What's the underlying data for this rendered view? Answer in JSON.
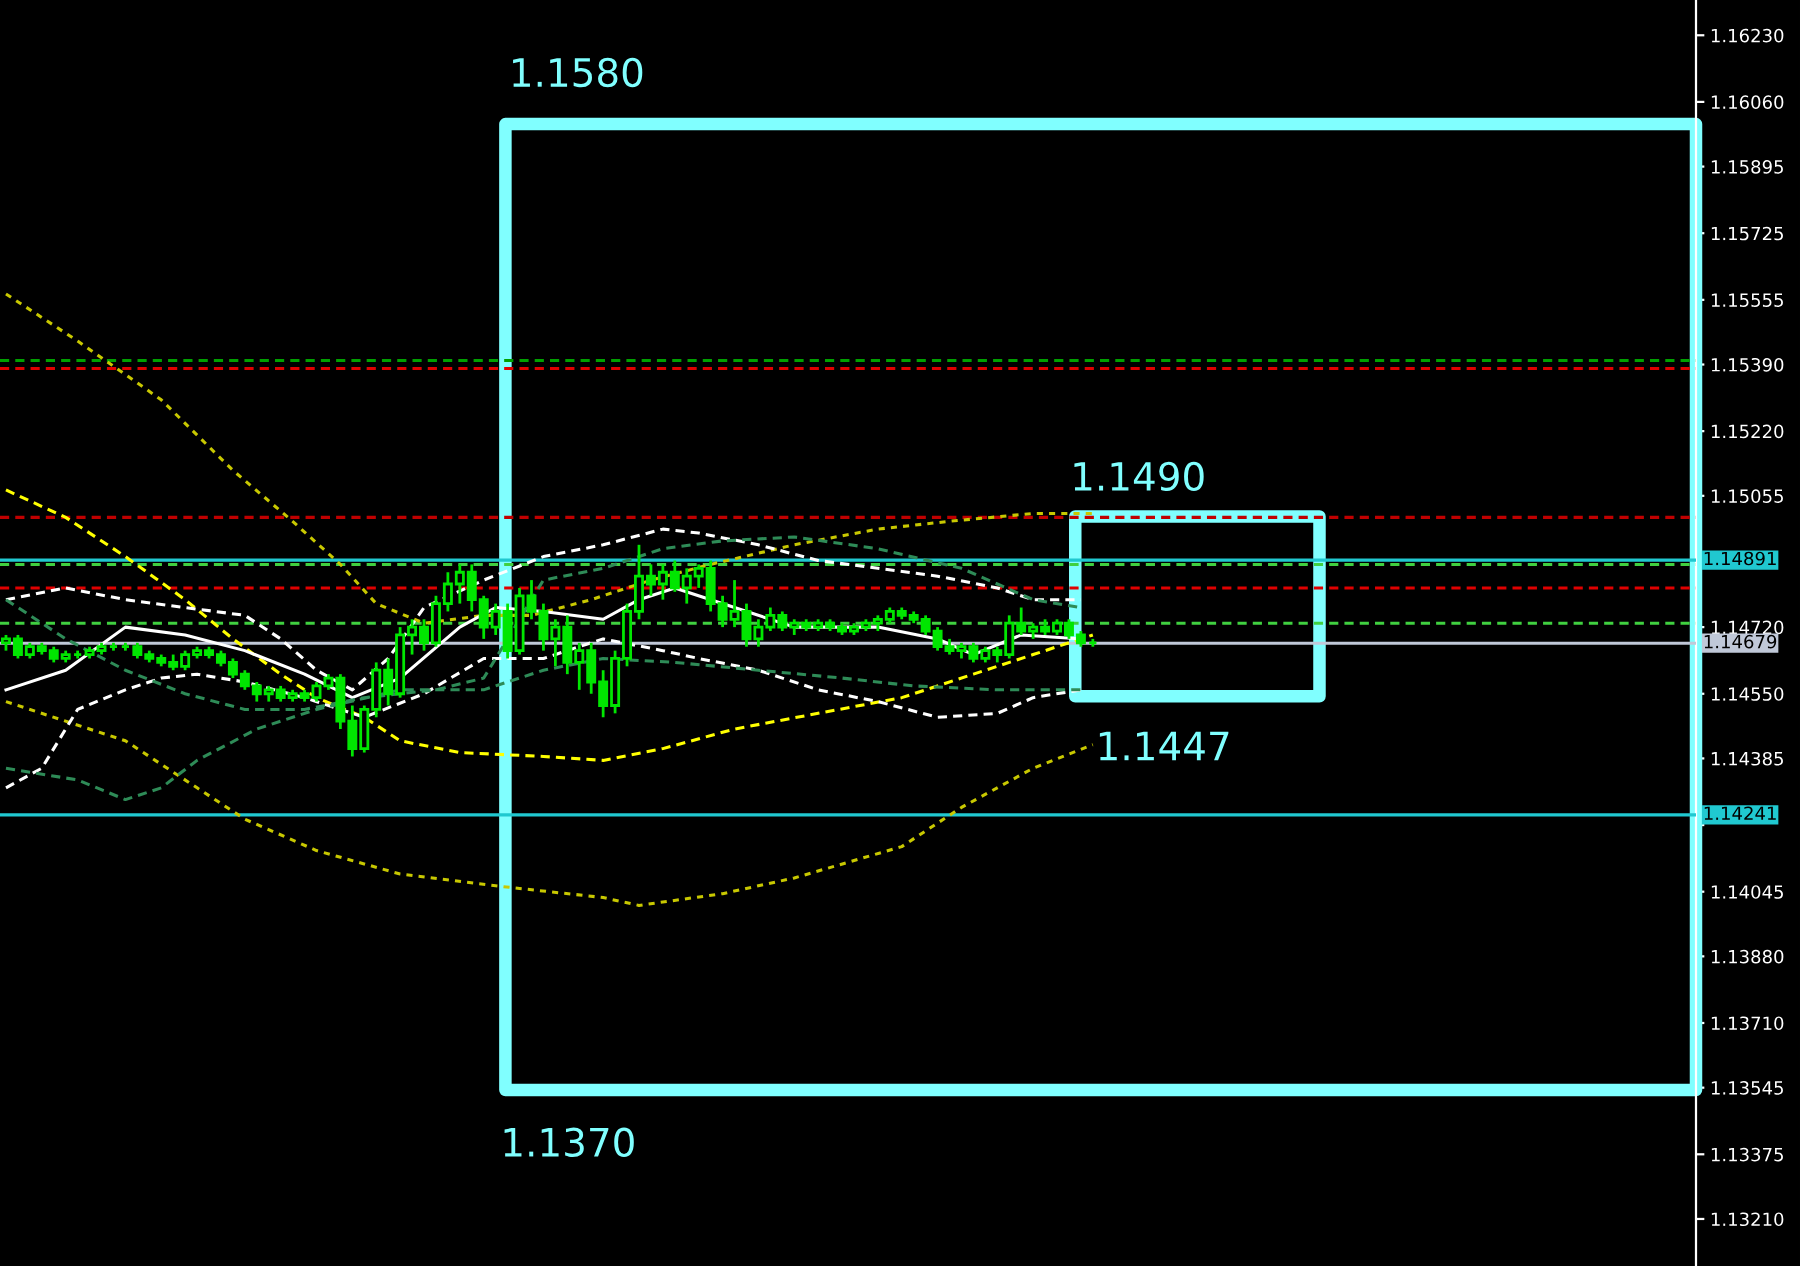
{
  "chart_data": {
    "type": "candlestick",
    "color": "#00e600",
    "categories": [
      null,
      null,
      null,
      null,
      null,
      null,
      null,
      null,
      null,
      null,
      null,
      null,
      null,
      null,
      null,
      null,
      null,
      null,
      null,
      null,
      null,
      null,
      null,
      null,
      null,
      null,
      null,
      null,
      null,
      null,
      null,
      null,
      null,
      null,
      null,
      null,
      null,
      null,
      null,
      null,
      null,
      null,
      null,
      null,
      null,
      null,
      null,
      null,
      null,
      null,
      null,
      null,
      null,
      null,
      null,
      null,
      null,
      null,
      null,
      null,
      null,
      null,
      null,
      null,
      null,
      null,
      null,
      null,
      null,
      null,
      null,
      null,
      null,
      null,
      null,
      null,
      null,
      null,
      null,
      null,
      null,
      null,
      null,
      null,
      null,
      null,
      null,
      null,
      null,
      null,
      null,
      null,
      null,
      null,
      null,
      null,
      null,
      null,
      null,
      null,
      null,
      null,
      null,
      null,
      null,
      null,
      null,
      null,
      null,
      null,
      null,
      null,
      null,
      null,
      null,
      null,
      null,
      null,
      null,
      null,
      null,
      null,
      null,
      null,
      null,
      null,
      null,
      null,
      null,
      null,
      null,
      null,
      null,
      null,
      null,
      null,
      null,
      null,
      null,
      null,
      null,
      null
    ],
    "ohlc": [
      [
        1.1468,
        1.147,
        1.1466,
        1.1469
      ],
      [
        1.1469,
        1.147,
        1.1464,
        1.1465
      ],
      [
        1.1465,
        1.1468,
        1.1464,
        1.1467
      ],
      [
        1.1467,
        1.1468,
        1.1465,
        1.1466
      ],
      [
        1.1466,
        1.1467,
        1.1463,
        1.1464
      ],
      [
        1.1464,
        1.1466,
        1.1463,
        1.1465
      ],
      [
        1.1465,
        1.1466,
        1.1464,
        1.1465
      ],
      [
        1.1465,
        1.1467,
        1.1464,
        1.1466
      ],
      [
        1.1466,
        1.1468,
        1.1465,
        1.1467
      ],
      [
        1.1467,
        1.1468,
        1.1466,
        1.1467
      ],
      [
        1.1467,
        1.1468,
        1.1466,
        1.1467
      ],
      [
        1.1467,
        1.1468,
        1.1464,
        1.1465
      ],
      [
        1.1465,
        1.1466,
        1.1463,
        1.1464
      ],
      [
        1.1464,
        1.1465,
        1.1462,
        1.1463
      ],
      [
        1.1463,
        1.1465,
        1.1461,
        1.1462
      ],
      [
        1.1462,
        1.1466,
        1.1461,
        1.1465
      ],
      [
        1.1465,
        1.1467,
        1.1464,
        1.1466
      ],
      [
        1.1466,
        1.1467,
        1.1464,
        1.1465
      ],
      [
        1.1465,
        1.1466,
        1.1462,
        1.1463
      ],
      [
        1.1463,
        1.1464,
        1.1459,
        1.146
      ],
      [
        1.146,
        1.1461,
        1.1456,
        1.1457
      ],
      [
        1.1457,
        1.1458,
        1.1453,
        1.1455
      ],
      [
        1.1455,
        1.1457,
        1.1453,
        1.1456
      ],
      [
        1.1456,
        1.1457,
        1.1453,
        1.1454
      ],
      [
        1.1454,
        1.1456,
        1.1453,
        1.1455
      ],
      [
        1.1455,
        1.1456,
        1.1453,
        1.1454
      ],
      [
        1.1454,
        1.1458,
        1.1453,
        1.1457
      ],
      [
        1.1457,
        1.146,
        1.1456,
        1.1459
      ],
      [
        1.1459,
        1.146,
        1.1446,
        1.1448
      ],
      [
        1.1448,
        1.1452,
        1.1439,
        1.1441
      ],
      [
        1.1441,
        1.1452,
        1.144,
        1.1451
      ],
      [
        1.1451,
        1.1463,
        1.1449,
        1.1461
      ],
      [
        1.1461,
        1.1464,
        1.1452,
        1.1455
      ],
      [
        1.1455,
        1.1472,
        1.1454,
        1.147
      ],
      [
        1.147,
        1.1474,
        1.1465,
        1.1472
      ],
      [
        1.1472,
        1.1474,
        1.1466,
        1.1468
      ],
      [
        1.1468,
        1.148,
        1.1467,
        1.1478
      ],
      [
        1.1478,
        1.1486,
        1.1476,
        1.1483
      ],
      [
        1.1483,
        1.1488,
        1.1478,
        1.1486
      ],
      [
        1.1486,
        1.1488,
        1.1476,
        1.1479
      ],
      [
        1.1479,
        1.148,
        1.1469,
        1.1472
      ],
      [
        1.1472,
        1.1478,
        1.147,
        1.1476
      ],
      [
        1.1476,
        1.1478,
        1.1464,
        1.1466
      ],
      [
        1.1466,
        1.1482,
        1.1465,
        1.148
      ],
      [
        1.148,
        1.1484,
        1.1474,
        1.1476
      ],
      [
        1.1476,
        1.1478,
        1.1466,
        1.1469
      ],
      [
        1.1469,
        1.1474,
        1.1462,
        1.1472
      ],
      [
        1.1472,
        1.1475,
        1.146,
        1.1463
      ],
      [
        1.1463,
        1.1468,
        1.1456,
        1.1466
      ],
      [
        1.1466,
        1.1468,
        1.1455,
        1.1458
      ],
      [
        1.1458,
        1.1461,
        1.1449,
        1.1452
      ],
      [
        1.1452,
        1.1466,
        1.145,
        1.1464
      ],
      [
        1.1464,
        1.1478,
        1.1462,
        1.1476
      ],
      [
        1.1476,
        1.1493,
        1.1474,
        1.1485
      ],
      [
        1.1485,
        1.1488,
        1.148,
        1.1483
      ],
      [
        1.1483,
        1.1488,
        1.1479,
        1.1486
      ],
      [
        1.1486,
        1.1489,
        1.1481,
        1.1482
      ],
      [
        1.1482,
        1.1487,
        1.1478,
        1.1485
      ],
      [
        1.1485,
        1.1488,
        1.1482,
        1.1487
      ],
      [
        1.1487,
        1.1489,
        1.1476,
        1.1478
      ],
      [
        1.1478,
        1.148,
        1.1472,
        1.1474
      ],
      [
        1.1474,
        1.1484,
        1.1472,
        1.1476
      ],
      [
        1.1476,
        1.1478,
        1.1467,
        1.1469
      ],
      [
        1.1469,
        1.1474,
        1.1467,
        1.1472
      ],
      [
        1.1472,
        1.1477,
        1.1471,
        1.1475
      ],
      [
        1.1475,
        1.1476,
        1.1471,
        1.1472
      ],
      [
        1.1472,
        1.1474,
        1.147,
        1.1473
      ],
      [
        1.1473,
        1.1474,
        1.1471,
        1.1472
      ],
      [
        1.1472,
        1.1474,
        1.1471,
        1.1473
      ],
      [
        1.1473,
        1.1474,
        1.1471,
        1.1472
      ],
      [
        1.1472,
        1.1473,
        1.147,
        1.1471
      ],
      [
        1.1471,
        1.1473,
        1.147,
        1.1472
      ],
      [
        1.1472,
        1.1474,
        1.1471,
        1.1473
      ],
      [
        1.1473,
        1.1475,
        1.1471,
        1.1474
      ],
      [
        1.1474,
        1.1477,
        1.1473,
        1.1476
      ],
      [
        1.1476,
        1.1477,
        1.1474,
        1.1475
      ],
      [
        1.1475,
        1.1476,
        1.1473,
        1.1474
      ],
      [
        1.1474,
        1.1475,
        1.147,
        1.1471
      ],
      [
        1.1471,
        1.1472,
        1.1466,
        1.1467
      ],
      [
        1.1467,
        1.1469,
        1.1465,
        1.1466
      ],
      [
        1.1466,
        1.1468,
        1.1464,
        1.1467
      ],
      [
        1.1467,
        1.1468,
        1.1463,
        1.1464
      ],
      [
        1.1464,
        1.1467,
        1.1463,
        1.1466
      ],
      [
        1.1466,
        1.1467,
        1.1463,
        1.1465
      ],
      [
        1.1465,
        1.1475,
        1.1464,
        1.1473
      ],
      [
        1.1473,
        1.1477,
        1.147,
        1.1471
      ],
      [
        1.1471,
        1.1473,
        1.1469,
        1.1472
      ],
      [
        1.1472,
        1.1474,
        1.147,
        1.1471
      ],
      [
        1.1471,
        1.1474,
        1.147,
        1.1473
      ],
      [
        1.1473,
        1.1474,
        1.1469,
        1.147
      ],
      [
        1.147,
        1.1471,
        1.1467,
        1.1468
      ],
      [
        1.1468,
        1.1469,
        1.1467,
        1.1468
      ],
      null,
      null,
      null,
      null,
      null,
      null,
      null,
      null,
      null,
      null,
      null,
      null,
      null,
      null,
      null,
      null,
      null,
      null,
      null,
      null,
      null,
      null,
      null,
      null,
      null,
      null,
      null,
      null,
      null,
      null,
      null,
      null,
      null,
      null,
      null,
      null,
      null,
      null,
      null,
      null,
      null,
      null,
      null,
      null,
      null,
      null,
      null,
      null,
      null,
      null
    ],
    "series": [
      {
        "type": "line",
        "color": "#c8c800",
        "line_style": "dotted",
        "values": [
          1.1557,
          null,
          null,
          null,
          null,
          null,
          1.1545,
          null,
          null,
          null,
          null,
          null,
          null,
          1.153,
          null,
          null,
          null,
          null,
          null,
          1.1512,
          null,
          null,
          null,
          null,
          1.1499,
          null,
          null,
          null,
          1.1488,
          null,
          null,
          1.1478,
          null,
          null,
          null,
          1.1473,
          null,
          null,
          null,
          null,
          1.1475,
          null,
          null,
          null,
          1.1475,
          null,
          null,
          null,
          null,
          1.1479,
          null,
          null,
          null,
          null,
          1.1484,
          null,
          null,
          null,
          null,
          1.1488,
          null,
          null,
          null,
          null,
          null,
          null,
          1.1493,
          null,
          null,
          null,
          null,
          null,
          null,
          1.1497,
          null,
          null,
          null,
          null,
          null,
          1.1499,
          null,
          null,
          null,
          null,
          null,
          null,
          1.1501,
          null,
          null,
          null,
          null,
          1.1501,
          null,
          null,
          null,
          null,
          null,
          null,
          null,
          null,
          null,
          null,
          null,
          null,
          null,
          null,
          null,
          null,
          null,
          null,
          null,
          null,
          null,
          null,
          null,
          null,
          null,
          null,
          null,
          null,
          null,
          null,
          null,
          null,
          null,
          null,
          null,
          null,
          null,
          null,
          null,
          null,
          null,
          null,
          null,
          null,
          null,
          null,
          null,
          null,
          null,
          null
        ]
      },
      {
        "type": "line",
        "color": "#c8c800",
        "line_style": "dotted",
        "values": [
          1.1453,
          null,
          null,
          null,
          null,
          null,
          null,
          null,
          null,
          null,
          1.1443,
          null,
          null,
          null,
          null,
          null,
          1.1431,
          null,
          null,
          null,
          1.1423,
          null,
          null,
          null,
          null,
          null,
          1.1415,
          null,
          null,
          null,
          null,
          null,
          null,
          1.1409,
          null,
          null,
          null,
          null,
          null,
          null,
          null,
          1.1406,
          null,
          null,
          null,
          null,
          null,
          null,
          null,
          null,
          1.1403,
          null,
          null,
          1.1401,
          null,
          null,
          null,
          null,
          null,
          null,
          1.1404,
          null,
          null,
          null,
          null,
          null,
          1.1408,
          null,
          null,
          null,
          null,
          null,
          null,
          null,
          null,
          1.1416,
          null,
          null,
          null,
          null,
          1.1426,
          null,
          null,
          null,
          null,
          null,
          1.1436,
          null,
          null,
          null,
          null,
          1.1442,
          null,
          null,
          null,
          null,
          null,
          null,
          null,
          null,
          null,
          null,
          null,
          null,
          null,
          null,
          null,
          null,
          null,
          null,
          null,
          null,
          null,
          null,
          null,
          null,
          null,
          null,
          null,
          null,
          null,
          null,
          null,
          null,
          null,
          null,
          null,
          null,
          null,
          null,
          null,
          null,
          null,
          null,
          null,
          null,
          null,
          null,
          null,
          null,
          null,
          null
        ]
      },
      {
        "type": "line",
        "color": "#ffff00",
        "line_style": "dashed",
        "values": [
          1.1507,
          null,
          null,
          null,
          null,
          1.15,
          null,
          null,
          null,
          null,
          1.149,
          null,
          null,
          null,
          null,
          1.1479,
          null,
          null,
          null,
          1.1469,
          null,
          null,
          null,
          1.146,
          null,
          null,
          1.1454,
          null,
          null,
          null,
          1.1449,
          null,
          null,
          1.1443,
          null,
          null,
          null,
          null,
          1.144,
          null,
          null,
          null,
          null,
          null,
          null,
          1.1439,
          null,
          null,
          null,
          null,
          1.1438,
          null,
          null,
          null,
          null,
          1.1441,
          null,
          null,
          null,
          null,
          null,
          1.1446,
          null,
          null,
          null,
          null,
          null,
          null,
          1.145,
          null,
          null,
          null,
          null,
          null,
          null,
          1.1454,
          null,
          null,
          null,
          null,
          null,
          1.146,
          null,
          null,
          null,
          null,
          1.1465,
          null,
          null,
          null,
          null,
          1.147,
          null,
          null,
          null,
          null,
          null,
          null,
          null,
          null,
          null,
          null,
          null,
          null,
          null,
          null,
          null,
          null,
          null,
          null,
          null,
          null,
          null,
          null,
          null,
          null,
          null,
          null,
          null,
          null,
          null,
          null,
          null,
          null,
          null,
          null,
          null,
          null,
          null,
          null,
          null,
          null,
          null,
          null,
          null,
          null,
          null,
          null,
          null,
          null,
          null,
          null
        ]
      },
      {
        "type": "line",
        "color": "#ffffff",
        "line_style": "dashed",
        "values": [
          1.1479,
          null,
          null,
          null,
          null,
          1.1482,
          null,
          null,
          null,
          null,
          1.1479,
          null,
          null,
          null,
          null,
          1.1477,
          null,
          null,
          null,
          null,
          1.1475,
          null,
          null,
          1.1469,
          null,
          null,
          1.1461,
          null,
          null,
          1.1456,
          null,
          null,
          1.1464,
          null,
          null,
          1.1477,
          null,
          null,
          null,
          null,
          1.1484,
          null,
          null,
          null,
          null,
          1.149,
          null,
          null,
          null,
          null,
          1.1493,
          null,
          null,
          null,
          null,
          1.1497,
          null,
          null,
          1.1496,
          null,
          null,
          null,
          null,
          1.1493,
          null,
          null,
          null,
          null,
          1.1489,
          null,
          null,
          null,
          null,
          1.1487,
          null,
          null,
          null,
          null,
          1.1485,
          null,
          null,
          null,
          null,
          1.1482,
          null,
          null,
          1.1479,
          null,
          null,
          null,
          1.1479,
          null,
          null,
          null,
          null,
          null,
          null,
          null,
          null,
          null,
          null,
          null,
          null,
          null,
          null,
          null,
          null,
          null,
          null,
          null,
          null,
          null,
          null,
          null,
          null,
          null,
          null,
          null,
          null,
          null,
          null,
          null,
          null,
          null,
          null,
          null,
          null,
          null,
          null,
          null,
          null,
          null,
          null,
          null,
          null,
          null,
          null,
          null,
          null,
          null,
          null,
          null
        ]
      },
      {
        "type": "line",
        "color": "#ffffff",
        "line_style": "dashed",
        "values": [
          1.1431,
          null,
          null,
          1.1436,
          null,
          null,
          1.1451,
          null,
          null,
          null,
          1.1456,
          null,
          null,
          1.1459,
          null,
          null,
          1.146,
          null,
          null,
          null,
          1.1458,
          null,
          null,
          null,
          null,
          1.1454,
          null,
          null,
          null,
          null,
          1.1449,
          null,
          null,
          null,
          null,
          1.1455,
          null,
          null,
          null,
          null,
          1.1464,
          null,
          null,
          null,
          null,
          1.1464,
          null,
          null,
          null,
          null,
          1.1469,
          null,
          null,
          null,
          null,
          1.1466,
          null,
          null,
          1.1464,
          null,
          null,
          null,
          null,
          1.1461,
          null,
          null,
          null,
          null,
          1.1456,
          null,
          null,
          null,
          null,
          1.1453,
          null,
          null,
          null,
          null,
          1.1449,
          null,
          null,
          null,
          null,
          1.145,
          null,
          null,
          1.1454,
          null,
          null,
          null,
          1.1456,
          null,
          null,
          null,
          null,
          null,
          null,
          null,
          null,
          null,
          null,
          null,
          null,
          null,
          null,
          null,
          null,
          null,
          null,
          null,
          null,
          null,
          null,
          null,
          null,
          null,
          null,
          null,
          null,
          null,
          null,
          null,
          null,
          null,
          null,
          null,
          null,
          null,
          null,
          null,
          null,
          null,
          null,
          null,
          null,
          null,
          null,
          null,
          null,
          null,
          null,
          null
        ]
      },
      {
        "type": "line",
        "color": "#ffffff",
        "line_style": "solid",
        "values": [
          1.1456,
          null,
          null,
          null,
          null,
          1.1461,
          null,
          null,
          null,
          null,
          1.1472,
          null,
          null,
          null,
          null,
          1.147,
          null,
          null,
          null,
          null,
          1.1466,
          null,
          null,
          null,
          null,
          1.146,
          null,
          null,
          null,
          1.1454,
          null,
          null,
          null,
          1.1459,
          null,
          null,
          null,
          null,
          1.1472,
          null,
          null,
          1.1477,
          null,
          null,
          null,
          1.1476,
          null,
          null,
          null,
          null,
          1.1474,
          null,
          null,
          1.1479,
          null,
          null,
          1.1482,
          null,
          null,
          null,
          null,
          1.1477,
          null,
          null,
          null,
          null,
          1.1472,
          null,
          null,
          null,
          null,
          null,
          null,
          1.1472,
          null,
          null,
          null,
          null,
          1.1469,
          null,
          null,
          1.1465,
          null,
          null,
          null,
          1.147,
          null,
          null,
          null,
          null,
          1.1469,
          null,
          null,
          null,
          null,
          null,
          null,
          null,
          null,
          null,
          null,
          null,
          null,
          null,
          null,
          null,
          null,
          null,
          null,
          null,
          null,
          null,
          null,
          null,
          null,
          null,
          null,
          null,
          null,
          null,
          null,
          null,
          null,
          null,
          null,
          null,
          null,
          null,
          null,
          null,
          null,
          null,
          null,
          null,
          null,
          null,
          null,
          null,
          null,
          null,
          null,
          null
        ]
      },
      {
        "type": "line",
        "color": "#2e8b57",
        "line_style": "dashed",
        "values": [
          1.1479,
          null,
          null,
          null,
          null,
          1.1469,
          null,
          null,
          null,
          null,
          1.1461,
          null,
          null,
          null,
          null,
          1.1455,
          null,
          null,
          null,
          null,
          1.1451,
          null,
          null,
          null,
          null,
          1.1451,
          null,
          null,
          null,
          null,
          1.1454,
          null,
          null,
          null,
          null,
          null,
          1.1456,
          null,
          null,
          null,
          1.1459,
          null,
          null,
          null,
          null,
          1.1484,
          null,
          null,
          null,
          null,
          1.1487,
          null,
          null,
          null,
          null,
          1.1492,
          null,
          null,
          null,
          null,
          1.1494,
          null,
          null,
          null,
          null,
          null,
          1.1495,
          null,
          null,
          null,
          null,
          null,
          null,
          1.1492,
          null,
          null,
          null,
          null,
          null,
          null,
          1.1487,
          null,
          null,
          null,
          null,
          null,
          1.1479,
          null,
          null,
          null,
          1.1477,
          null,
          null,
          null,
          null,
          null,
          null,
          null,
          null,
          null,
          null,
          null,
          null,
          null,
          null,
          null,
          null,
          null,
          null,
          null,
          null,
          null,
          null,
          null,
          null,
          null,
          null,
          null,
          null,
          null,
          null,
          null,
          null,
          null,
          null,
          null,
          null,
          null,
          null,
          null,
          null,
          null,
          null,
          null,
          null,
          null,
          null,
          null,
          null,
          null,
          null,
          null
        ]
      },
      {
        "type": "line",
        "color": "#2e8b57",
        "line_style": "dashed",
        "values": [
          1.1436,
          null,
          null,
          null,
          null,
          null,
          1.1433,
          null,
          null,
          null,
          1.1428,
          null,
          null,
          1.1431,
          null,
          null,
          1.1438,
          null,
          null,
          null,
          null,
          1.1446,
          null,
          null,
          null,
          null,
          1.1451,
          null,
          null,
          null,
          null,
          null,
          null,
          1.1456,
          null,
          null,
          null,
          null,
          null,
          null,
          1.1456,
          null,
          null,
          null,
          null,
          1.1461,
          null,
          null,
          null,
          null,
          1.1464,
          null,
          null,
          null,
          null,
          null,
          1.1463,
          null,
          null,
          null,
          null,
          null,
          null,
          1.1461,
          null,
          null,
          null,
          null,
          null,
          null,
          1.1459,
          null,
          null,
          null,
          null,
          null,
          1.1457,
          null,
          null,
          null,
          null,
          null,
          null,
          1.1456,
          null,
          null,
          null,
          null,
          null,
          null,
          1.1456,
          null,
          null,
          null,
          null,
          null,
          null,
          null,
          null,
          null,
          null,
          null,
          null,
          null,
          null,
          null,
          null,
          null,
          null,
          null,
          null,
          null,
          null,
          null,
          null,
          null,
          null,
          null,
          null,
          null,
          null,
          null,
          null,
          null,
          null,
          null,
          null,
          null,
          null,
          null,
          null,
          null,
          null,
          null,
          null,
          null,
          null,
          null,
          null,
          null,
          null,
          null
        ]
      }
    ],
    "ref_lines": [
      {
        "axis": "y",
        "value": 1.154,
        "color": "#00a000",
        "line_style": "dashed"
      },
      {
        "axis": "y",
        "value": 1.1538,
        "color": "#e00000",
        "line_style": "dashed"
      },
      {
        "axis": "y",
        "value": 1.15,
        "color": "#c00000",
        "line_style": "dashed"
      },
      {
        "axis": "y",
        "value": 1.14891,
        "label": "1.14891",
        "color": "#20c8d0",
        "line_style": "solid"
      },
      {
        "axis": "y",
        "value": 1.1488,
        "color": "#40d040",
        "line_style": "dashed"
      },
      {
        "axis": "y",
        "value": 1.1482,
        "color": "#e00000",
        "line_style": "dashed"
      },
      {
        "axis": "y",
        "value": 1.1473,
        "color": "#40d040",
        "line_style": "dashed"
      },
      {
        "axis": "y",
        "value": 1.14679,
        "label": "1.14679",
        "color": "#c0c8d8",
        "line_style": "solid"
      },
      {
        "axis": "y",
        "value": 1.14241,
        "label": "1.14241",
        "color": "#20c8d0",
        "line_style": "solid"
      }
    ],
    "annotations": [
      "1.1580",
      "1.1370",
      "1.1490",
      "1.1447"
    ],
    "ylim": [
      1.1309,
      1.1632
    ],
    "yticks": [
      {
        "value": 1.1623,
        "label": "1.16230"
      },
      {
        "value": 1.1606,
        "label": "1.16060"
      },
      {
        "value": 1.15895,
        "label": "1.15895"
      },
      {
        "value": 1.15725,
        "label": "1.15725"
      },
      {
        "value": 1.15555,
        "label": "1.15555"
      },
      {
        "value": 1.1539,
        "label": "1.15390"
      },
      {
        "value": 1.1522,
        "label": "1.15220"
      },
      {
        "value": 1.15055,
        "label": "1.15055"
      },
      {
        "value": 1.1472,
        "label": "1.14720"
      },
      {
        "value": 1.1455,
        "label": "1.14550"
      },
      {
        "value": 1.14385,
        "label": "1.14385"
      },
      {
        "value": 1.14215,
        "label": null
      },
      {
        "value": 1.14045,
        "label": "1.14045"
      },
      {
        "value": 1.1388,
        "label": "1.13880"
      },
      {
        "value": 1.1371,
        "label": "1.13710"
      },
      {
        "value": 1.13545,
        "label": "1.13545"
      },
      {
        "value": 1.13375,
        "label": "1.13375"
      },
      {
        "value": 1.1321,
        "label": "1.13210"
      }
    ]
  }
}
